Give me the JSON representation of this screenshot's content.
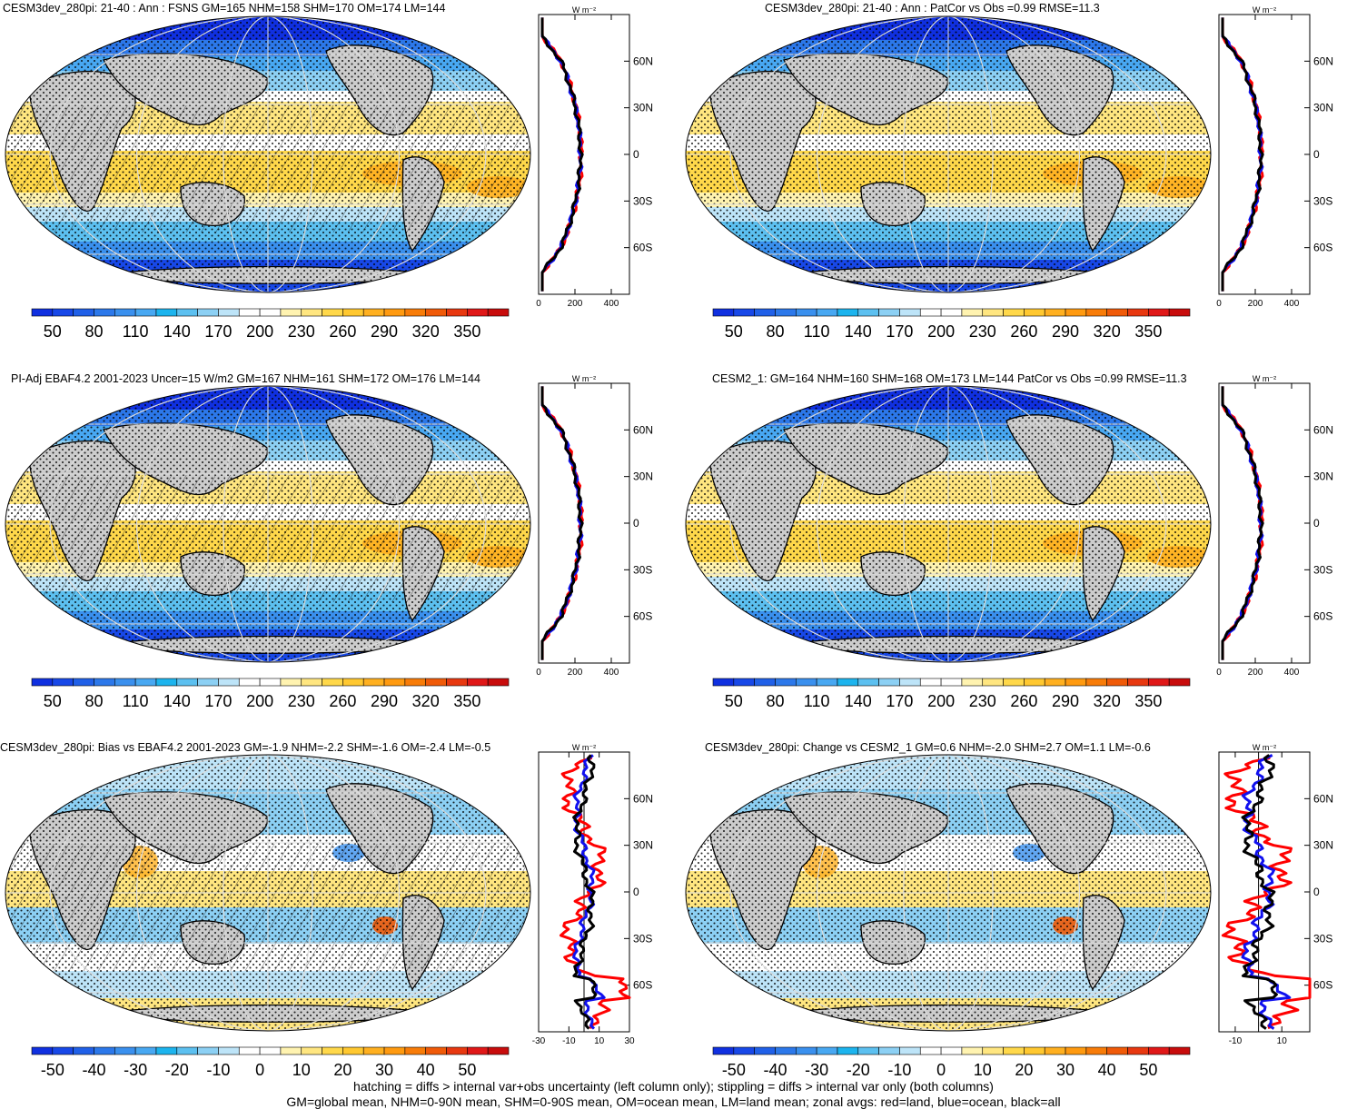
{
  "panels": [
    {
      "id": "p1",
      "title": "CESM3dev_280pi: 21-40 : Ann : FSNS GM=165 NHM=158 SHM=170 OM=174 LM=144",
      "kind": "abs",
      "hatch": true
    },
    {
      "id": "p2",
      "title": "CESM3dev_280pi: 21-40 : Ann : PatCor vs Obs =0.99 RMSE=11.3",
      "kind": "abs",
      "hatch": false
    },
    {
      "id": "p3",
      "title": "PI-Adj EBAF4.2 2001-2023 Uncer=15 W/m2 GM=167 NHM=161 SHM=172 OM=176 LM=144",
      "kind": "abs",
      "hatch": true
    },
    {
      "id": "p4",
      "title": "CESM2_1: GM=164 NHM=160 SHM=168 OM=173 LM=144 PatCor vs Obs =0.99 RMSE=11.3",
      "kind": "abs",
      "hatch": false
    },
    {
      "id": "p5",
      "title": "CESM3dev_280pi: Bias vs EBAF4.2 2001-2023 GM=-1.9 NHM=-2.2 SHM=-1.6 OM=-2.4 LM=-0.5",
      "kind": "diff",
      "hatch": true
    },
    {
      "id": "p6",
      "title": "CESM3dev_280pi: Change vs CESM2_1 GM=0.6 NHM=-2.0 SHM=2.7 OM=1.1 LM=-0.6",
      "kind": "diff",
      "hatch": false
    }
  ],
  "zonal_unit": "W m⁻²",
  "lat_labels": [
    "60N",
    "30N",
    "0",
    "30S",
    "60S"
  ],
  "zonal_axis": {
    "abs": {
      "min": 0,
      "max": 500,
      "ticks": [
        "0",
        "200",
        "400"
      ],
      "tick_values": [
        0,
        200,
        400
      ]
    },
    "diff_left": {
      "min": -30,
      "max": 30,
      "ticks": [
        "-30",
        "-10",
        "10",
        "30"
      ],
      "tick_values": [
        -30,
        -10,
        10,
        30
      ]
    },
    "diff_right": {
      "min": -17,
      "max": 22,
      "ticks": [
        "-10",
        "10"
      ],
      "tick_values": [
        -10,
        10
      ]
    }
  },
  "colorbar": {
    "abs_labels": [
      "50",
      "80",
      "110",
      "140",
      "170",
      "200",
      "230",
      "260",
      "290",
      "320",
      "350"
    ],
    "diff_labels": [
      "-50",
      "-40",
      "-30",
      "-20",
      "-10",
      "0",
      "10",
      "20",
      "30",
      "40",
      "50"
    ],
    "colors": [
      "#1030e0",
      "#1848e8",
      "#2060e8",
      "#2c78ea",
      "#3a90ee",
      "#48a8f2",
      "#1cb4ee",
      "#5cc0f0",
      "#8cd0f4",
      "#bde4f8",
      "#ffffff",
      "#ffffff",
      "#fff3b0",
      "#ffe680",
      "#ffd84a",
      "#ffc830",
      "#ffb020",
      "#ff9a10",
      "#f87c08",
      "#f05a08",
      "#e83810",
      "#e01818",
      "#c80c0c"
    ]
  },
  "colors": {
    "land": "#cccccc",
    "land_curve": "#ff0000",
    "ocean_curve": "#1010ee",
    "all_curve": "#000000"
  },
  "footer": {
    "line1": "hatching = diffs > internal var+obs uncertainty (left column only); stippling = diffs > internal var only (both columns)",
    "line2": "GM=global mean, NHM=0-90N mean, SHM=0-90S mean, OM=ocean mean, LM=land mean; zonal avgs: red=land, blue=ocean, black=all"
  }
}
